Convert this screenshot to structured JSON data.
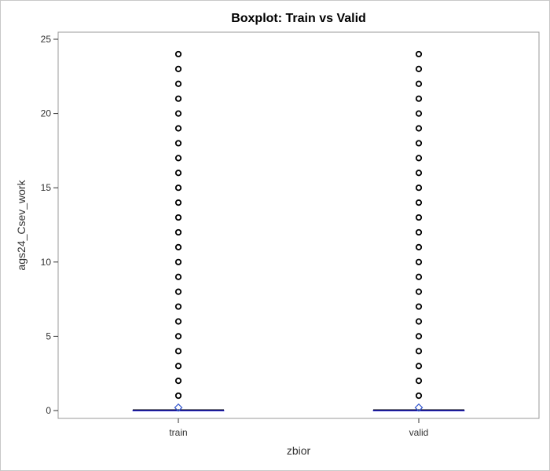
{
  "chart_data": {
    "type": "boxplot",
    "title": "Boxplot: Train vs Valid",
    "xlabel": "zbior",
    "ylabel": "ags24_Csev_work",
    "categories": [
      "train",
      "valid"
    ],
    "ylim": [
      0,
      25
    ],
    "yticks": [
      0,
      5,
      10,
      15,
      20,
      25
    ],
    "grid": false,
    "legend": "none",
    "series": [
      {
        "category": "train",
        "min": 0,
        "q1": 0,
        "median": 0,
        "q3": 0,
        "max": 0,
        "mean": 0.2,
        "outliers": [
          1,
          2,
          3,
          4,
          5,
          6,
          7,
          8,
          9,
          10,
          11,
          12,
          13,
          14,
          15,
          16,
          17,
          18,
          19,
          20,
          21,
          22,
          23,
          24
        ]
      },
      {
        "category": "valid",
        "min": 0,
        "q1": 0,
        "median": 0,
        "q3": 0,
        "max": 0,
        "mean": 0.2,
        "outliers": [
          1,
          2,
          3,
          4,
          5,
          6,
          7,
          8,
          9,
          10,
          11,
          12,
          13,
          14,
          15,
          16,
          17,
          18,
          19,
          20,
          21,
          22,
          23,
          24
        ]
      }
    ],
    "colors": {
      "box_line": "#0000cc",
      "mean_marker": "#3355cc",
      "whisker": "#000000",
      "outlier": "#000000",
      "frame": "#999999"
    }
  }
}
